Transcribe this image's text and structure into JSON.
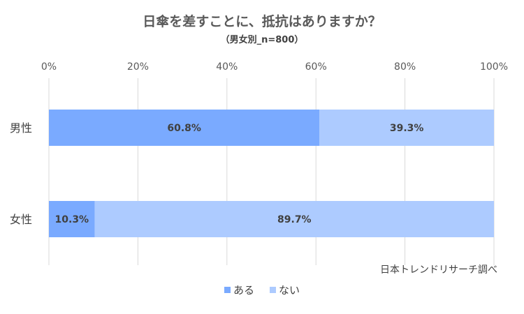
{
  "chart_data": {
    "type": "bar",
    "orientation": "horizontal",
    "stacked": true,
    "title": "日傘を差すことに、抵抗はありますか？",
    "subtitle": "（男女別_n=800）",
    "categories": [
      "男性",
      "女性"
    ],
    "series": [
      {
        "name": "ある",
        "values": [
          60.8,
          10.3
        ],
        "labels": [
          "60.8%",
          "10.3%"
        ],
        "color": "#7aaaff"
      },
      {
        "name": "ない",
        "values": [
          39.3,
          89.7
        ],
        "labels": [
          "39.3%",
          "89.7%"
        ],
        "color": "#adcbff"
      }
    ],
    "xlim": [
      0,
      100
    ],
    "xticks": [
      0,
      20,
      40,
      60,
      80,
      100
    ],
    "xtick_labels": [
      "0%",
      "20%",
      "40%",
      "60%",
      "80%",
      "100%"
    ],
    "grid": true,
    "legend": "bottom",
    "source": "日本トレンドリサーチ調べ"
  }
}
